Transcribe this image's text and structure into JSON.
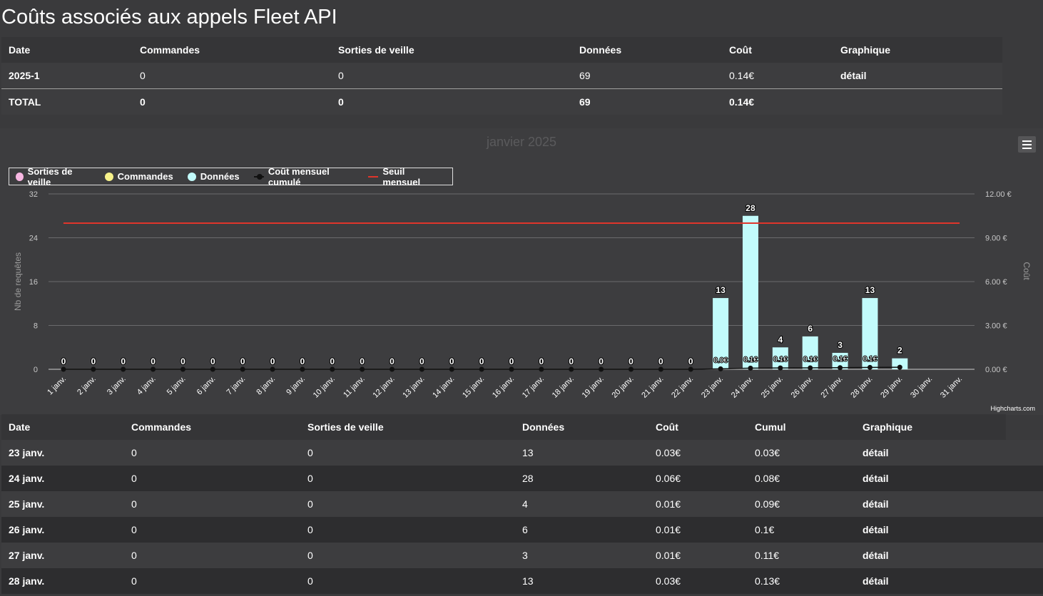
{
  "page": {
    "title": "Coûts associés aux appels Fleet API"
  },
  "summary": {
    "headers": [
      "Date",
      "Commandes",
      "Sorties de veille",
      "Données",
      "Coût",
      "Graphique"
    ],
    "rows": [
      {
        "date": "2025-1",
        "commandes": "0",
        "sorties": "0",
        "donnees": "69",
        "cout": "0.14€",
        "graphique": "détail"
      }
    ],
    "total": {
      "date": "TOTAL",
      "commandes": "0",
      "sorties": "0",
      "donnees": "69",
      "cout": "0.14€"
    }
  },
  "chart_data": {
    "type": "bar",
    "title": "janvier 2025",
    "credits": "Highcharts.com",
    "categories": [
      "1 janv.",
      "2 janv.",
      "3 janv.",
      "4 janv.",
      "5 janv.",
      "6 janv.",
      "7 janv.",
      "8 janv.",
      "9 janv.",
      "10 janv.",
      "11 janv.",
      "12 janv.",
      "13 janv.",
      "14 janv.",
      "15 janv.",
      "16 janv.",
      "17 janv.",
      "18 janv.",
      "19 janv.",
      "20 janv.",
      "21 janv.",
      "22 janv.",
      "23 janv.",
      "24 janv.",
      "25 janv.",
      "26 janv.",
      "27 janv.",
      "28 janv.",
      "29 janv.",
      "30 janv.",
      "31 janv."
    ],
    "yAxisLeft": {
      "label": "Nb de requêtes",
      "min": 0,
      "max": 32,
      "ticks": [
        "0",
        "8",
        "16",
        "24",
        "32"
      ]
    },
    "yAxisRight": {
      "label": "Coût",
      "min": 0,
      "max": 12,
      "ticks": [
        "0.00 €",
        "3.00 €",
        "6.00 €",
        "9.00 €",
        "12.00 €"
      ]
    },
    "legend": {
      "placement": "top-left"
    },
    "grid": true,
    "series": [
      {
        "name": "Sorties de veille",
        "type": "bar",
        "color": "#f7b7e2",
        "values": [
          0,
          0,
          0,
          0,
          0,
          0,
          0,
          0,
          0,
          0,
          0,
          0,
          0,
          0,
          0,
          0,
          0,
          0,
          0,
          0,
          0,
          0,
          0,
          0,
          0,
          0,
          0,
          0,
          0,
          null,
          null
        ]
      },
      {
        "name": "Commandes",
        "type": "bar",
        "color": "#f7f28a",
        "values": [
          0,
          0,
          0,
          0,
          0,
          0,
          0,
          0,
          0,
          0,
          0,
          0,
          0,
          0,
          0,
          0,
          0,
          0,
          0,
          0,
          0,
          0,
          0,
          0,
          0,
          0,
          0,
          0,
          0,
          null,
          null
        ]
      },
      {
        "name": "Données",
        "type": "bar",
        "color": "#c2fbfb",
        "values": [
          0,
          0,
          0,
          0,
          0,
          0,
          0,
          0,
          0,
          0,
          0,
          0,
          0,
          0,
          0,
          0,
          0,
          0,
          0,
          0,
          0,
          0,
          13,
          28,
          4,
          6,
          3,
          13,
          2,
          null,
          null
        ]
      },
      {
        "name": "Coût mensuel cumulé",
        "type": "line",
        "color": "#111111",
        "values": [
          0,
          0,
          0,
          0,
          0,
          0,
          0,
          0,
          0,
          0,
          0,
          0,
          0,
          0,
          0,
          0,
          0,
          0,
          0,
          0,
          0,
          0,
          0.03,
          0.08,
          0.09,
          0.1,
          0.11,
          0.13,
          0.14,
          null,
          null
        ]
      },
      {
        "name": "Seuil mensuel",
        "type": "line",
        "color": "#e0352b",
        "values": [
          10,
          10,
          10,
          10,
          10,
          10,
          10,
          10,
          10,
          10,
          10,
          10,
          10,
          10,
          10,
          10,
          10,
          10,
          10,
          10,
          10,
          10,
          10,
          10,
          10,
          10,
          10,
          10,
          10,
          10,
          10
        ]
      }
    ],
    "data_labels": {
      "bars": [
        "0",
        "0",
        "0",
        "0",
        "0",
        "0",
        "0",
        "0",
        "0",
        "0",
        "0",
        "0",
        "0",
        "0",
        "0",
        "0",
        "0",
        "0",
        "0",
        "0",
        "0",
        "0",
        "13",
        "28",
        "4",
        "6",
        "3",
        "13",
        "2",
        "",
        ""
      ],
      "cost": [
        "",
        "",
        "",
        "",
        "",
        "",
        "",
        "",
        "",
        "",
        "",
        "",
        "",
        "",
        "",
        "",
        "",
        "",
        "",
        "",
        "",
        "",
        "0.0€",
        "0.1€",
        "0.1€",
        "0.1€",
        "0.1€",
        "0.1€",
        "",
        "",
        ""
      ]
    }
  },
  "detail": {
    "headers": [
      "Date",
      "Commandes",
      "Sorties de veille",
      "Données",
      "Coût",
      "Cumul",
      "Graphique"
    ],
    "rows": [
      {
        "date": "23 janv.",
        "commandes": "0",
        "sorties": "0",
        "donnees": "13",
        "cout": "0.03€",
        "cumul": "0.03€",
        "graphique": "détail"
      },
      {
        "date": "24 janv.",
        "commandes": "0",
        "sorties": "0",
        "donnees": "28",
        "cout": "0.06€",
        "cumul": "0.08€",
        "graphique": "détail"
      },
      {
        "date": "25 janv.",
        "commandes": "0",
        "sorties": "0",
        "donnees": "4",
        "cout": "0.01€",
        "cumul": "0.09€",
        "graphique": "détail"
      },
      {
        "date": "26 janv.",
        "commandes": "0",
        "sorties": "0",
        "donnees": "6",
        "cout": "0.01€",
        "cumul": "0.1€",
        "graphique": "détail"
      },
      {
        "date": "27 janv.",
        "commandes": "0",
        "sorties": "0",
        "donnees": "3",
        "cout": "0.01€",
        "cumul": "0.11€",
        "graphique": "détail"
      },
      {
        "date": "28 janv.",
        "commandes": "0",
        "sorties": "0",
        "donnees": "13",
        "cout": "0.03€",
        "cumul": "0.13€",
        "graphique": "détail"
      }
    ]
  }
}
